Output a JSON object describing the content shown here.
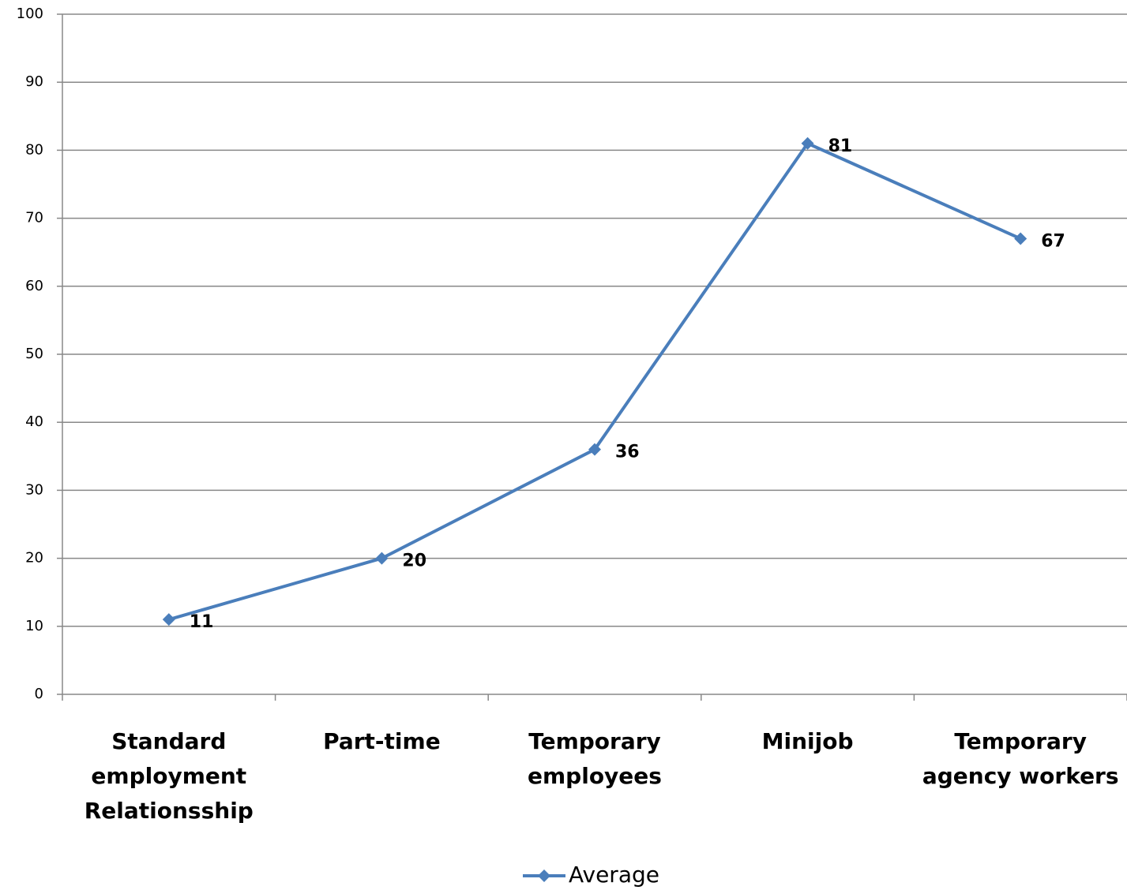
{
  "chart_data": {
    "type": "line",
    "categories": [
      "Standard employment Relationsship",
      "Part-time",
      "Temporary employees",
      "Minijob",
      "Temporary agency workers"
    ],
    "series": [
      {
        "name": "Average",
        "color": "#4a7ebb",
        "values": [
          11,
          20,
          36,
          81,
          67
        ]
      }
    ],
    "ylim": [
      0,
      100
    ],
    "yticks": [
      0,
      10,
      20,
      30,
      40,
      50,
      60,
      70,
      80,
      90,
      100
    ],
    "grid": true,
    "data_labels": true,
    "legend": "bottom"
  }
}
